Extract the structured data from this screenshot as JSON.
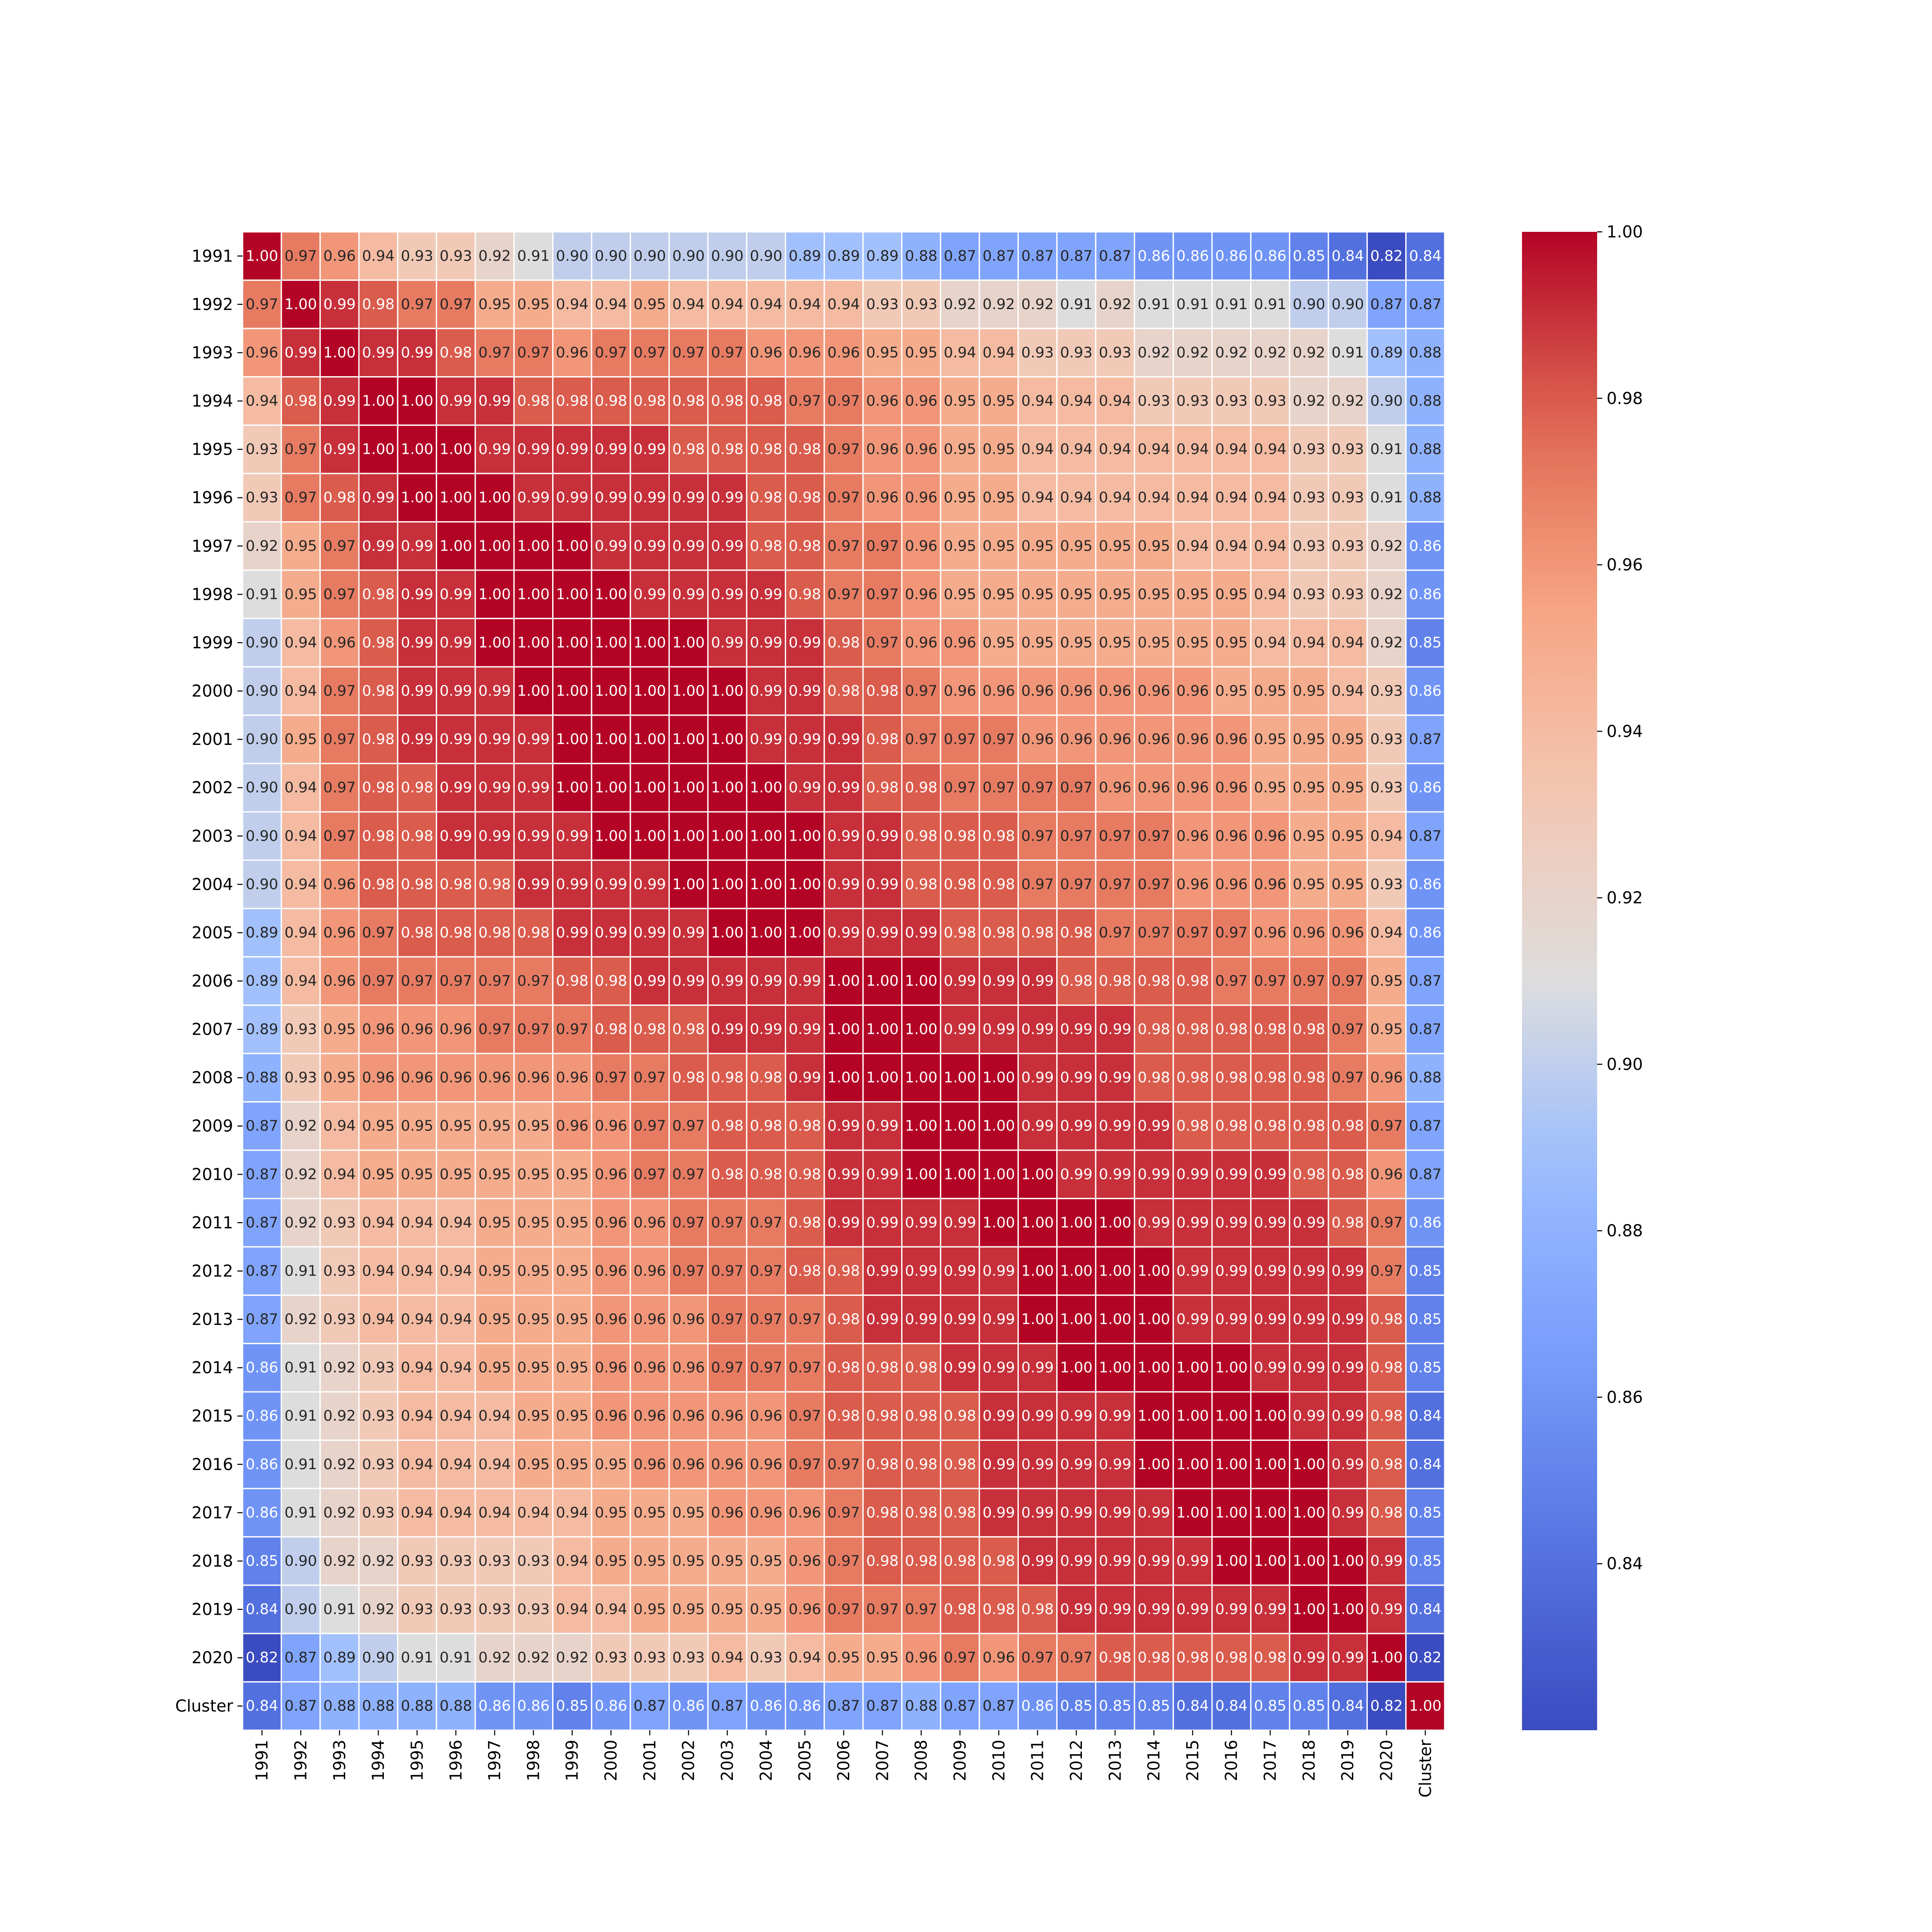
{
  "chart_data": {
    "type": "heatmap",
    "title": "",
    "xlabel": "",
    "ylabel": "",
    "labels": [
      "1991",
      "1992",
      "1993",
      "1994",
      "1995",
      "1996",
      "1997",
      "1998",
      "1999",
      "2000",
      "2001",
      "2002",
      "2003",
      "2004",
      "2005",
      "2006",
      "2007",
      "2008",
      "2009",
      "2010",
      "2011",
      "2012",
      "2013",
      "2014",
      "2015",
      "2016",
      "2017",
      "2018",
      "2019",
      "2020",
      "Cluster"
    ],
    "colormap": "coolwarm",
    "vmin": 0.82,
    "vmax": 1.0,
    "colorbar_ticks": [
      "0.84",
      "0.86",
      "0.88",
      "0.90",
      "0.92",
      "0.94",
      "0.96",
      "0.98",
      "1.00"
    ],
    "matrix": [
      [
        1.0,
        0.97,
        0.96,
        0.94,
        0.93,
        0.93,
        0.92,
        0.91,
        0.9,
        0.9,
        0.9,
        0.9,
        0.9,
        0.9,
        0.89,
        0.89,
        0.89,
        0.88,
        0.87,
        0.87,
        0.87,
        0.87,
        0.87,
        0.86,
        0.86,
        0.86,
        0.86,
        0.85,
        0.84,
        0.82,
        0.84
      ],
      [
        0.97,
        1.0,
        0.99,
        0.98,
        0.97,
        0.97,
        0.95,
        0.95,
        0.94,
        0.94,
        0.95,
        0.94,
        0.94,
        0.94,
        0.94,
        0.94,
        0.93,
        0.93,
        0.92,
        0.92,
        0.92,
        0.91,
        0.92,
        0.91,
        0.91,
        0.91,
        0.91,
        0.9,
        0.9,
        0.87,
        0.87
      ],
      [
        0.96,
        0.99,
        1.0,
        0.99,
        0.99,
        0.98,
        0.97,
        0.97,
        0.96,
        0.97,
        0.97,
        0.97,
        0.97,
        0.96,
        0.96,
        0.96,
        0.95,
        0.95,
        0.94,
        0.94,
        0.93,
        0.93,
        0.93,
        0.92,
        0.92,
        0.92,
        0.92,
        0.92,
        0.91,
        0.89,
        0.88
      ],
      [
        0.94,
        0.98,
        0.99,
        1.0,
        1.0,
        0.99,
        0.99,
        0.98,
        0.98,
        0.98,
        0.98,
        0.98,
        0.98,
        0.98,
        0.97,
        0.97,
        0.96,
        0.96,
        0.95,
        0.95,
        0.94,
        0.94,
        0.94,
        0.93,
        0.93,
        0.93,
        0.93,
        0.92,
        0.92,
        0.9,
        0.88
      ],
      [
        0.93,
        0.97,
        0.99,
        1.0,
        1.0,
        1.0,
        0.99,
        0.99,
        0.99,
        0.99,
        0.99,
        0.98,
        0.98,
        0.98,
        0.98,
        0.97,
        0.96,
        0.96,
        0.95,
        0.95,
        0.94,
        0.94,
        0.94,
        0.94,
        0.94,
        0.94,
        0.94,
        0.93,
        0.93,
        0.91,
        0.88
      ],
      [
        0.93,
        0.97,
        0.98,
        0.99,
        1.0,
        1.0,
        1.0,
        0.99,
        0.99,
        0.99,
        0.99,
        0.99,
        0.99,
        0.98,
        0.98,
        0.97,
        0.96,
        0.96,
        0.95,
        0.95,
        0.94,
        0.94,
        0.94,
        0.94,
        0.94,
        0.94,
        0.94,
        0.93,
        0.93,
        0.91,
        0.88
      ],
      [
        0.92,
        0.95,
        0.97,
        0.99,
        0.99,
        1.0,
        1.0,
        1.0,
        1.0,
        0.99,
        0.99,
        0.99,
        0.99,
        0.98,
        0.98,
        0.97,
        0.97,
        0.96,
        0.95,
        0.95,
        0.95,
        0.95,
        0.95,
        0.95,
        0.94,
        0.94,
        0.94,
        0.93,
        0.93,
        0.92,
        0.86
      ],
      [
        0.91,
        0.95,
        0.97,
        0.98,
        0.99,
        0.99,
        1.0,
        1.0,
        1.0,
        1.0,
        0.99,
        0.99,
        0.99,
        0.99,
        0.98,
        0.97,
        0.97,
        0.96,
        0.95,
        0.95,
        0.95,
        0.95,
        0.95,
        0.95,
        0.95,
        0.95,
        0.94,
        0.93,
        0.93,
        0.92,
        0.86
      ],
      [
        0.9,
        0.94,
        0.96,
        0.98,
        0.99,
        0.99,
        1.0,
        1.0,
        1.0,
        1.0,
        1.0,
        1.0,
        0.99,
        0.99,
        0.99,
        0.98,
        0.97,
        0.96,
        0.96,
        0.95,
        0.95,
        0.95,
        0.95,
        0.95,
        0.95,
        0.95,
        0.94,
        0.94,
        0.94,
        0.92,
        0.85
      ],
      [
        0.9,
        0.94,
        0.97,
        0.98,
        0.99,
        0.99,
        0.99,
        1.0,
        1.0,
        1.0,
        1.0,
        1.0,
        1.0,
        0.99,
        0.99,
        0.98,
        0.98,
        0.97,
        0.96,
        0.96,
        0.96,
        0.96,
        0.96,
        0.96,
        0.96,
        0.95,
        0.95,
        0.95,
        0.94,
        0.93,
        0.86
      ],
      [
        0.9,
        0.95,
        0.97,
        0.98,
        0.99,
        0.99,
        0.99,
        0.99,
        1.0,
        1.0,
        1.0,
        1.0,
        1.0,
        0.99,
        0.99,
        0.99,
        0.98,
        0.97,
        0.97,
        0.97,
        0.96,
        0.96,
        0.96,
        0.96,
        0.96,
        0.96,
        0.95,
        0.95,
        0.95,
        0.93,
        0.87
      ],
      [
        0.9,
        0.94,
        0.97,
        0.98,
        0.98,
        0.99,
        0.99,
        0.99,
        1.0,
        1.0,
        1.0,
        1.0,
        1.0,
        1.0,
        0.99,
        0.99,
        0.98,
        0.98,
        0.97,
        0.97,
        0.97,
        0.97,
        0.96,
        0.96,
        0.96,
        0.96,
        0.95,
        0.95,
        0.95,
        0.93,
        0.86
      ],
      [
        0.9,
        0.94,
        0.97,
        0.98,
        0.98,
        0.99,
        0.99,
        0.99,
        0.99,
        1.0,
        1.0,
        1.0,
        1.0,
        1.0,
        1.0,
        0.99,
        0.99,
        0.98,
        0.98,
        0.98,
        0.97,
        0.97,
        0.97,
        0.97,
        0.96,
        0.96,
        0.96,
        0.95,
        0.95,
        0.94,
        0.87
      ],
      [
        0.9,
        0.94,
        0.96,
        0.98,
        0.98,
        0.98,
        0.98,
        0.99,
        0.99,
        0.99,
        0.99,
        1.0,
        1.0,
        1.0,
        1.0,
        0.99,
        0.99,
        0.98,
        0.98,
        0.98,
        0.97,
        0.97,
        0.97,
        0.97,
        0.96,
        0.96,
        0.96,
        0.95,
        0.95,
        0.93,
        0.86
      ],
      [
        0.89,
        0.94,
        0.96,
        0.97,
        0.98,
        0.98,
        0.98,
        0.98,
        0.99,
        0.99,
        0.99,
        0.99,
        1.0,
        1.0,
        1.0,
        0.99,
        0.99,
        0.99,
        0.98,
        0.98,
        0.98,
        0.98,
        0.97,
        0.97,
        0.97,
        0.97,
        0.96,
        0.96,
        0.96,
        0.94,
        0.86
      ],
      [
        0.89,
        0.94,
        0.96,
        0.97,
        0.97,
        0.97,
        0.97,
        0.97,
        0.98,
        0.98,
        0.99,
        0.99,
        0.99,
        0.99,
        0.99,
        1.0,
        1.0,
        1.0,
        0.99,
        0.99,
        0.99,
        0.98,
        0.98,
        0.98,
        0.98,
        0.97,
        0.97,
        0.97,
        0.97,
        0.95,
        0.87
      ],
      [
        0.89,
        0.93,
        0.95,
        0.96,
        0.96,
        0.96,
        0.97,
        0.97,
        0.97,
        0.98,
        0.98,
        0.98,
        0.99,
        0.99,
        0.99,
        1.0,
        1.0,
        1.0,
        0.99,
        0.99,
        0.99,
        0.99,
        0.99,
        0.98,
        0.98,
        0.98,
        0.98,
        0.98,
        0.97,
        0.95,
        0.87
      ],
      [
        0.88,
        0.93,
        0.95,
        0.96,
        0.96,
        0.96,
        0.96,
        0.96,
        0.96,
        0.97,
        0.97,
        0.98,
        0.98,
        0.98,
        0.99,
        1.0,
        1.0,
        1.0,
        1.0,
        1.0,
        0.99,
        0.99,
        0.99,
        0.98,
        0.98,
        0.98,
        0.98,
        0.98,
        0.97,
        0.96,
        0.88
      ],
      [
        0.87,
        0.92,
        0.94,
        0.95,
        0.95,
        0.95,
        0.95,
        0.95,
        0.96,
        0.96,
        0.97,
        0.97,
        0.98,
        0.98,
        0.98,
        0.99,
        0.99,
        1.0,
        1.0,
        1.0,
        0.99,
        0.99,
        0.99,
        0.99,
        0.98,
        0.98,
        0.98,
        0.98,
        0.98,
        0.97,
        0.87
      ],
      [
        0.87,
        0.92,
        0.94,
        0.95,
        0.95,
        0.95,
        0.95,
        0.95,
        0.95,
        0.96,
        0.97,
        0.97,
        0.98,
        0.98,
        0.98,
        0.99,
        0.99,
        1.0,
        1.0,
        1.0,
        1.0,
        0.99,
        0.99,
        0.99,
        0.99,
        0.99,
        0.99,
        0.98,
        0.98,
        0.96,
        0.87
      ],
      [
        0.87,
        0.92,
        0.93,
        0.94,
        0.94,
        0.94,
        0.95,
        0.95,
        0.95,
        0.96,
        0.96,
        0.97,
        0.97,
        0.97,
        0.98,
        0.99,
        0.99,
        0.99,
        0.99,
        1.0,
        1.0,
        1.0,
        1.0,
        0.99,
        0.99,
        0.99,
        0.99,
        0.99,
        0.98,
        0.97,
        0.86
      ],
      [
        0.87,
        0.91,
        0.93,
        0.94,
        0.94,
        0.94,
        0.95,
        0.95,
        0.95,
        0.96,
        0.96,
        0.97,
        0.97,
        0.97,
        0.98,
        0.98,
        0.99,
        0.99,
        0.99,
        0.99,
        1.0,
        1.0,
        1.0,
        1.0,
        0.99,
        0.99,
        0.99,
        0.99,
        0.99,
        0.97,
        0.85
      ],
      [
        0.87,
        0.92,
        0.93,
        0.94,
        0.94,
        0.94,
        0.95,
        0.95,
        0.95,
        0.96,
        0.96,
        0.96,
        0.97,
        0.97,
        0.97,
        0.98,
        0.99,
        0.99,
        0.99,
        0.99,
        1.0,
        1.0,
        1.0,
        1.0,
        0.99,
        0.99,
        0.99,
        0.99,
        0.99,
        0.98,
        0.85
      ],
      [
        0.86,
        0.91,
        0.92,
        0.93,
        0.94,
        0.94,
        0.95,
        0.95,
        0.95,
        0.96,
        0.96,
        0.96,
        0.97,
        0.97,
        0.97,
        0.98,
        0.98,
        0.98,
        0.99,
        0.99,
        0.99,
        1.0,
        1.0,
        1.0,
        1.0,
        1.0,
        0.99,
        0.99,
        0.99,
        0.98,
        0.85
      ],
      [
        0.86,
        0.91,
        0.92,
        0.93,
        0.94,
        0.94,
        0.94,
        0.95,
        0.95,
        0.96,
        0.96,
        0.96,
        0.96,
        0.96,
        0.97,
        0.98,
        0.98,
        0.98,
        0.98,
        0.99,
        0.99,
        0.99,
        0.99,
        1.0,
        1.0,
        1.0,
        1.0,
        0.99,
        0.99,
        0.98,
        0.84
      ],
      [
        0.86,
        0.91,
        0.92,
        0.93,
        0.94,
        0.94,
        0.94,
        0.95,
        0.95,
        0.95,
        0.96,
        0.96,
        0.96,
        0.96,
        0.97,
        0.97,
        0.98,
        0.98,
        0.98,
        0.99,
        0.99,
        0.99,
        0.99,
        1.0,
        1.0,
        1.0,
        1.0,
        1.0,
        0.99,
        0.98,
        0.84
      ],
      [
        0.86,
        0.91,
        0.92,
        0.93,
        0.94,
        0.94,
        0.94,
        0.94,
        0.94,
        0.95,
        0.95,
        0.95,
        0.96,
        0.96,
        0.96,
        0.97,
        0.98,
        0.98,
        0.98,
        0.99,
        0.99,
        0.99,
        0.99,
        0.99,
        1.0,
        1.0,
        1.0,
        1.0,
        0.99,
        0.98,
        0.85
      ],
      [
        0.85,
        0.9,
        0.92,
        0.92,
        0.93,
        0.93,
        0.93,
        0.93,
        0.94,
        0.95,
        0.95,
        0.95,
        0.95,
        0.95,
        0.96,
        0.97,
        0.98,
        0.98,
        0.98,
        0.98,
        0.99,
        0.99,
        0.99,
        0.99,
        0.99,
        1.0,
        1.0,
        1.0,
        1.0,
        0.99,
        0.85
      ],
      [
        0.84,
        0.9,
        0.91,
        0.92,
        0.93,
        0.93,
        0.93,
        0.93,
        0.94,
        0.94,
        0.95,
        0.95,
        0.95,
        0.95,
        0.96,
        0.97,
        0.97,
        0.97,
        0.98,
        0.98,
        0.98,
        0.99,
        0.99,
        0.99,
        0.99,
        0.99,
        0.99,
        1.0,
        1.0,
        0.99,
        0.84
      ],
      [
        0.82,
        0.87,
        0.89,
        0.9,
        0.91,
        0.91,
        0.92,
        0.92,
        0.92,
        0.93,
        0.93,
        0.93,
        0.94,
        0.93,
        0.94,
        0.95,
        0.95,
        0.96,
        0.97,
        0.96,
        0.97,
        0.97,
        0.98,
        0.98,
        0.98,
        0.98,
        0.98,
        0.99,
        0.99,
        1.0,
        0.82
      ],
      [
        0.84,
        0.87,
        0.88,
        0.88,
        0.88,
        0.88,
        0.86,
        0.86,
        0.85,
        0.86,
        0.87,
        0.86,
        0.87,
        0.86,
        0.86,
        0.87,
        0.87,
        0.88,
        0.87,
        0.87,
        0.86,
        0.85,
        0.85,
        0.85,
        0.84,
        0.84,
        0.85,
        0.85,
        0.84,
        0.82,
        1.0
      ]
    ]
  }
}
